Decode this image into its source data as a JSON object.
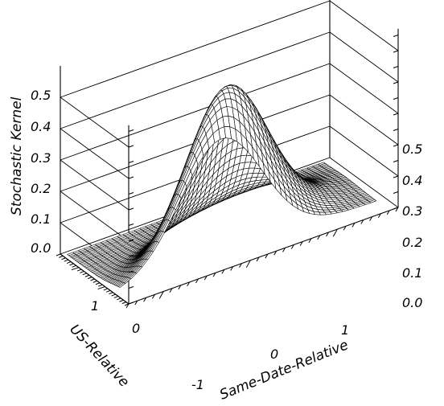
{
  "chart_data": {
    "type": "surface",
    "zlabel": "Stochastic Kernel",
    "xlabel": "Same-Date-Relative",
    "ylabel": "US-Relative",
    "x_ticks": [
      "-1",
      "0",
      "1"
    ],
    "y_ticks": [
      "0",
      "1"
    ],
    "z_ticks_left": [
      "0.0",
      "0.1",
      "0.2",
      "0.3",
      "0.4",
      "0.5"
    ],
    "z_ticks_right": [
      "0.0",
      "0.1",
      "0.2",
      "0.3",
      "0.4",
      "0.5"
    ],
    "xlim": [
      -1.4,
      1.7
    ],
    "ylim": [
      -0.9,
      1.7
    ],
    "zlim": [
      0,
      0.55
    ],
    "surface": {
      "form": "bivariate density ridge along x ≈ y",
      "peak_height": 0.5,
      "peak_at": [
        0.0,
        0.0
      ],
      "ridge_x": [
        -0.7,
        -0.35,
        0.0,
        0.35,
        0.7
      ],
      "ridge_z": [
        0.12,
        0.33,
        0.5,
        0.33,
        0.12
      ]
    },
    "grid": true
  }
}
